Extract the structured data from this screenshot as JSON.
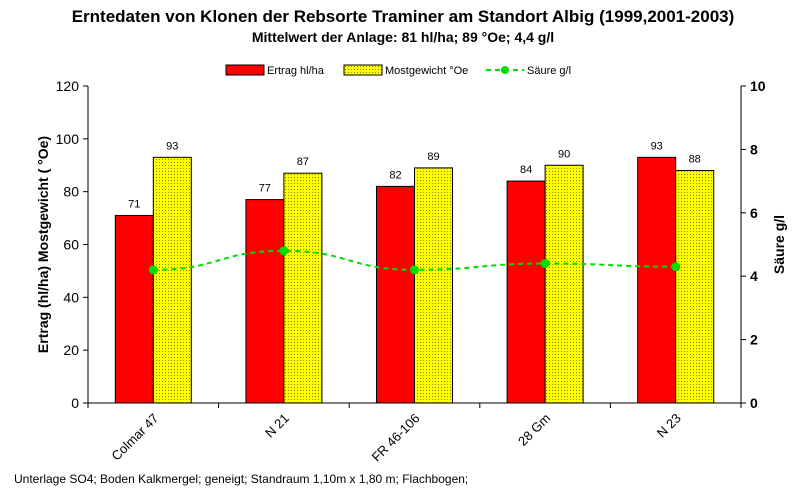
{
  "title": "Erntedaten von Klonen der Rebsorte Traminer am Standort Albig (1999,2001-2003)",
  "subtitle": "Mittelwert der Anlage: 81 hl/ha; 89 °Oe; 4,4 g/l",
  "footer": "Unterlage SO4;  Boden Kalkmergel;  geneigt; Standraum 1,10m x 1,80 m; Flachbogen;",
  "colors": {
    "ertrag": "#ff0000",
    "most": "#ffff00",
    "saeure": "#00dd00"
  },
  "chart_data": {
    "type": "bar",
    "categories": [
      "Colmar 47",
      "N 21",
      "FR 46-106",
      "28 Gm",
      "N 23"
    ],
    "series": [
      {
        "name": "Ertrag hl/ha",
        "type": "bar",
        "axis": "left",
        "values": [
          71,
          77,
          82,
          84,
          93
        ],
        "labels": [
          "71",
          "77",
          "82",
          "84",
          "93"
        ]
      },
      {
        "name": "Mostgewicht °Oe",
        "type": "bar",
        "axis": "left",
        "values": [
          93,
          87,
          89,
          90,
          88
        ],
        "labels": [
          "93",
          "87",
          "89",
          "90",
          "88"
        ]
      },
      {
        "name": "Säure g/l",
        "type": "line",
        "axis": "right",
        "values": [
          4.2,
          4.8,
          4.2,
          4.4,
          4.3
        ]
      }
    ],
    "ylabel": "Ertrag (hl/ha)   Mostgewicht ( °Oe)",
    "y2label": "Säure g/l",
    "ylim": [
      0,
      120
    ],
    "y2lim": [
      0,
      10
    ],
    "yticks": [
      "0",
      "20",
      "40",
      "60",
      "80",
      "100",
      "120"
    ],
    "y2ticks": [
      "0",
      "2",
      "4",
      "6",
      "8",
      "10"
    ],
    "grid": false,
    "legend": "top-center"
  }
}
